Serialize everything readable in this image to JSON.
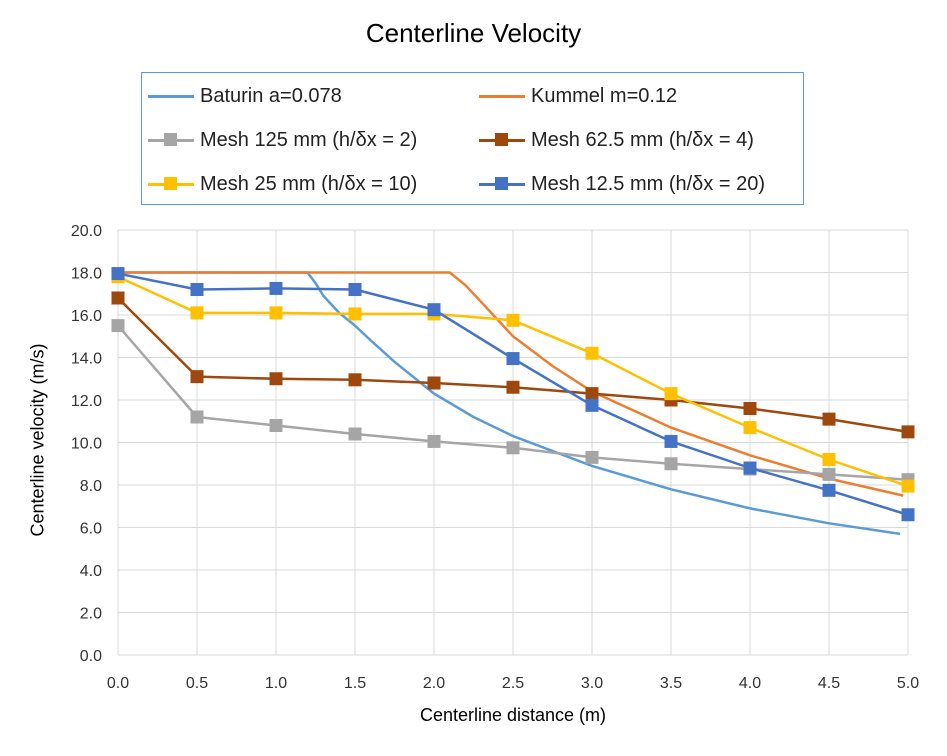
{
  "chart_data": {
    "type": "line",
    "title": "Centerline Velocity",
    "xlabel": "Centerline distance (m)",
    "ylabel": "Centerline velocity (m/s)",
    "xlim": [
      0,
      5
    ],
    "ylim": [
      0,
      20
    ],
    "x_ticks": [
      "0.0",
      "0.5",
      "1.0",
      "1.5",
      "2.0",
      "2.5",
      "3.0",
      "3.5",
      "4.0",
      "4.5",
      "5.0"
    ],
    "y_ticks": [
      "0.0",
      "2.0",
      "4.0",
      "6.0",
      "8.0",
      "10.0",
      "12.0",
      "14.0",
      "16.0",
      "18.0",
      "20.0"
    ],
    "grid": true,
    "legend_position": "top",
    "series": [
      {
        "name": "Baturin a=0.078",
        "color": "#5b9bd5",
        "marker": false,
        "x": [
          0,
          1.2,
          1.25,
          1.3,
          1.4,
          1.5,
          1.6,
          1.75,
          2.0,
          2.25,
          2.5,
          3.0,
          3.5,
          4.0,
          4.5,
          4.95
        ],
        "y": [
          18.0,
          18.0,
          17.5,
          16.9,
          16.1,
          15.5,
          14.8,
          13.8,
          12.3,
          11.2,
          10.3,
          8.9,
          7.8,
          6.9,
          6.2,
          5.7
        ]
      },
      {
        "name": "Kummel m=0.12",
        "color": "#ed7d31",
        "marker": false,
        "x": [
          0,
          2.1,
          2.2,
          2.3,
          2.5,
          2.75,
          3.0,
          3.5,
          4.0,
          4.5,
          4.97
        ],
        "y": [
          18.0,
          18.0,
          17.4,
          16.6,
          15.0,
          13.6,
          12.4,
          10.7,
          9.4,
          8.3,
          7.5
        ]
      },
      {
        "name": "Mesh 125 mm (h/δx = 2)",
        "color": "#a5a5a5",
        "marker": true,
        "x": [
          0,
          0.5,
          1.0,
          1.5,
          2.0,
          2.5,
          3.0,
          3.5,
          4.0,
          4.5,
          5.0
        ],
        "y": [
          15.5,
          11.2,
          10.8,
          10.4,
          10.05,
          9.75,
          9.3,
          9.0,
          8.75,
          8.5,
          8.25
        ]
      },
      {
        "name": "Mesh 62.5 mm (h/δx = 4)",
        "color": "#9e480e",
        "marker": true,
        "x": [
          0,
          0.5,
          1.0,
          1.5,
          2.0,
          2.5,
          3.0,
          3.5,
          4.0,
          4.5,
          5.0
        ],
        "y": [
          16.8,
          13.1,
          13.0,
          12.95,
          12.8,
          12.6,
          12.3,
          12.0,
          11.6,
          11.1,
          10.5
        ]
      },
      {
        "name": "Mesh 25 mm (h/δx = 10)",
        "color": "#ffc000",
        "marker": true,
        "x": [
          0,
          0.5,
          1.0,
          1.5,
          2.0,
          2.5,
          3.0,
          3.5,
          4.0,
          4.5,
          5.0
        ],
        "y": [
          17.8,
          16.1,
          16.1,
          16.05,
          16.05,
          15.75,
          14.2,
          12.3,
          10.7,
          9.2,
          7.95
        ]
      },
      {
        "name": "Mesh 12.5 mm (h/δx = 20)",
        "color": "#4472c4",
        "marker": true,
        "x": [
          0,
          0.5,
          1.0,
          1.5,
          2.0,
          2.5,
          3.0,
          3.5,
          4.0,
          4.5,
          5.0
        ],
        "y": [
          17.95,
          17.2,
          17.25,
          17.2,
          16.25,
          13.95,
          11.75,
          10.05,
          8.8,
          7.75,
          6.6
        ]
      }
    ]
  }
}
